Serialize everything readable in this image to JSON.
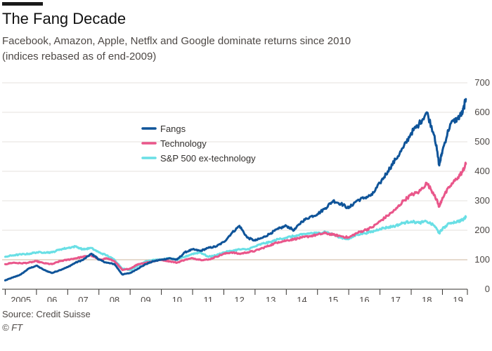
{
  "header": {
    "title": "The Fang Decade",
    "subtitle_line1": "Facebook, Amazon, Apple, Netflx and Google dominate returns since 2010",
    "subtitle_line2": "(indices rebased as of end-2009)"
  },
  "footer": {
    "source": "Source: Credit Suisse",
    "credit": "© FT"
  },
  "colors": {
    "fangs": "#0f5499",
    "technology": "#e9568a",
    "sp500": "#69dfe5",
    "gridline": "#e6e2de",
    "baseline": "#d8c4b0",
    "axis": "#33302e"
  },
  "chart_data": {
    "type": "line",
    "title": "The Fang Decade",
    "x_range": [
      2004.9,
      2019.8
    ],
    "ylim": [
      0,
      700
    ],
    "y_ticks": [
      0,
      100,
      200,
      300,
      400,
      500,
      600,
      700
    ],
    "x_ticks": [
      {
        "label": "2005",
        "value": 2005.5
      },
      {
        "label": "06",
        "value": 2006.5
      },
      {
        "label": "07",
        "value": 2007.5
      },
      {
        "label": "08",
        "value": 2008.5
      },
      {
        "label": "09",
        "value": 2009.5
      },
      {
        "label": "10",
        "value": 2010.5
      },
      {
        "label": "11",
        "value": 2011.5
      },
      {
        "label": "12",
        "value": 2012.5
      },
      {
        "label": "13",
        "value": 2013.5
      },
      {
        "label": "14",
        "value": 2014.5
      },
      {
        "label": "15",
        "value": 2015.5
      },
      {
        "label": "16",
        "value": 2016.5
      },
      {
        "label": "17",
        "value": 2017.5
      },
      {
        "label": "18",
        "value": 2018.5
      },
      {
        "label": "19",
        "value": 2019.5
      }
    ],
    "reference_line": 100,
    "grid": true,
    "legend_position": "top-left",
    "series": [
      {
        "name": "Fangs",
        "color": "#0f5499",
        "points": [
          [
            2005.0,
            30
          ],
          [
            2005.25,
            40
          ],
          [
            2005.5,
            50
          ],
          [
            2005.75,
            70
          ],
          [
            2006.0,
            80
          ],
          [
            2006.25,
            65
          ],
          [
            2006.5,
            55
          ],
          [
            2006.75,
            65
          ],
          [
            2007.0,
            75
          ],
          [
            2007.25,
            90
          ],
          [
            2007.5,
            100
          ],
          [
            2007.75,
            120
          ],
          [
            2007.9,
            110
          ],
          [
            2008.0,
            100
          ],
          [
            2008.25,
            90
          ],
          [
            2008.5,
            85
          ],
          [
            2008.75,
            50
          ],
          [
            2009.0,
            55
          ],
          [
            2009.25,
            70
          ],
          [
            2009.5,
            85
          ],
          [
            2009.75,
            95
          ],
          [
            2010.0,
            100
          ],
          [
            2010.25,
            105
          ],
          [
            2010.5,
            100
          ],
          [
            2010.75,
            125
          ],
          [
            2011.0,
            135
          ],
          [
            2011.25,
            130
          ],
          [
            2011.5,
            140
          ],
          [
            2011.75,
            145
          ],
          [
            2012.0,
            160
          ],
          [
            2012.25,
            190
          ],
          [
            2012.5,
            215
          ],
          [
            2012.75,
            175
          ],
          [
            2013.0,
            165
          ],
          [
            2013.25,
            175
          ],
          [
            2013.5,
            190
          ],
          [
            2013.75,
            205
          ],
          [
            2014.0,
            215
          ],
          [
            2014.25,
            200
          ],
          [
            2014.5,
            230
          ],
          [
            2014.75,
            245
          ],
          [
            2015.0,
            255
          ],
          [
            2015.25,
            275
          ],
          [
            2015.5,
            300
          ],
          [
            2015.75,
            290
          ],
          [
            2016.0,
            275
          ],
          [
            2016.25,
            300
          ],
          [
            2016.5,
            310
          ],
          [
            2016.75,
            320
          ],
          [
            2017.0,
            360
          ],
          [
            2017.25,
            400
          ],
          [
            2017.5,
            440
          ],
          [
            2017.75,
            480
          ],
          [
            2018.0,
            530
          ],
          [
            2018.25,
            560
          ],
          [
            2018.5,
            600
          ],
          [
            2018.75,
            520
          ],
          [
            2018.9,
            420
          ],
          [
            2019.0,
            470
          ],
          [
            2019.25,
            560
          ],
          [
            2019.5,
            580
          ],
          [
            2019.65,
            600
          ],
          [
            2019.75,
            645
          ]
        ]
      },
      {
        "name": "Technology",
        "color": "#e9568a",
        "points": [
          [
            2005.0,
            85
          ],
          [
            2005.25,
            90
          ],
          [
            2005.5,
            88
          ],
          [
            2005.75,
            90
          ],
          [
            2006.0,
            95
          ],
          [
            2006.25,
            88
          ],
          [
            2006.5,
            85
          ],
          [
            2006.75,
            95
          ],
          [
            2007.0,
            100
          ],
          [
            2007.25,
            105
          ],
          [
            2007.5,
            110
          ],
          [
            2007.75,
            115
          ],
          [
            2008.0,
            100
          ],
          [
            2008.25,
            105
          ],
          [
            2008.5,
            95
          ],
          [
            2008.75,
            65
          ],
          [
            2009.0,
            70
          ],
          [
            2009.25,
            85
          ],
          [
            2009.5,
            90
          ],
          [
            2009.75,
            95
          ],
          [
            2010.0,
            100
          ],
          [
            2010.25,
            95
          ],
          [
            2010.5,
            90
          ],
          [
            2010.75,
            100
          ],
          [
            2011.0,
            105
          ],
          [
            2011.25,
            100
          ],
          [
            2011.5,
            100
          ],
          [
            2011.75,
            110
          ],
          [
            2012.0,
            120
          ],
          [
            2012.25,
            125
          ],
          [
            2012.5,
            120
          ],
          [
            2012.75,
            125
          ],
          [
            2013.0,
            130
          ],
          [
            2013.25,
            140
          ],
          [
            2013.5,
            150
          ],
          [
            2013.75,
            160
          ],
          [
            2014.0,
            165
          ],
          [
            2014.25,
            170
          ],
          [
            2014.5,
            175
          ],
          [
            2014.75,
            180
          ],
          [
            2015.0,
            185
          ],
          [
            2015.25,
            190
          ],
          [
            2015.5,
            185
          ],
          [
            2015.75,
            180
          ],
          [
            2016.0,
            175
          ],
          [
            2016.25,
            190
          ],
          [
            2016.5,
            200
          ],
          [
            2016.75,
            210
          ],
          [
            2017.0,
            230
          ],
          [
            2017.25,
            250
          ],
          [
            2017.5,
            270
          ],
          [
            2017.75,
            300
          ],
          [
            2018.0,
            320
          ],
          [
            2018.25,
            330
          ],
          [
            2018.5,
            360
          ],
          [
            2018.75,
            320
          ],
          [
            2018.9,
            280
          ],
          [
            2019.0,
            310
          ],
          [
            2019.25,
            350
          ],
          [
            2019.5,
            380
          ],
          [
            2019.65,
            400
          ],
          [
            2019.75,
            425
          ]
        ]
      },
      {
        "name": "S&P 500 ex-technology",
        "color": "#69dfe5",
        "points": [
          [
            2005.0,
            110
          ],
          [
            2005.25,
            115
          ],
          [
            2005.5,
            118
          ],
          [
            2005.75,
            120
          ],
          [
            2006.0,
            125
          ],
          [
            2006.25,
            125
          ],
          [
            2006.5,
            125
          ],
          [
            2006.75,
            135
          ],
          [
            2007.0,
            140
          ],
          [
            2007.25,
            145
          ],
          [
            2007.5,
            135
          ],
          [
            2007.75,
            140
          ],
          [
            2008.0,
            125
          ],
          [
            2008.25,
            115
          ],
          [
            2008.5,
            100
          ],
          [
            2008.75,
            70
          ],
          [
            2009.0,
            65
          ],
          [
            2009.25,
            80
          ],
          [
            2009.5,
            95
          ],
          [
            2009.75,
            100
          ],
          [
            2010.0,
            100
          ],
          [
            2010.25,
            105
          ],
          [
            2010.5,
            100
          ],
          [
            2010.75,
            110
          ],
          [
            2011.0,
            120
          ],
          [
            2011.25,
            125
          ],
          [
            2011.5,
            110
          ],
          [
            2011.75,
            115
          ],
          [
            2012.0,
            125
          ],
          [
            2012.25,
            130
          ],
          [
            2012.5,
            135
          ],
          [
            2012.75,
            135
          ],
          [
            2013.0,
            145
          ],
          [
            2013.25,
            155
          ],
          [
            2013.5,
            160
          ],
          [
            2013.75,
            170
          ],
          [
            2014.0,
            175
          ],
          [
            2014.25,
            180
          ],
          [
            2014.5,
            185
          ],
          [
            2014.75,
            190
          ],
          [
            2015.0,
            190
          ],
          [
            2015.25,
            195
          ],
          [
            2015.5,
            185
          ],
          [
            2015.75,
            175
          ],
          [
            2016.0,
            170
          ],
          [
            2016.25,
            185
          ],
          [
            2016.5,
            190
          ],
          [
            2016.75,
            195
          ],
          [
            2017.0,
            205
          ],
          [
            2017.25,
            210
          ],
          [
            2017.5,
            215
          ],
          [
            2017.75,
            225
          ],
          [
            2018.0,
            230
          ],
          [
            2018.25,
            225
          ],
          [
            2018.5,
            230
          ],
          [
            2018.75,
            215
          ],
          [
            2018.9,
            190
          ],
          [
            2019.0,
            205
          ],
          [
            2019.25,
            225
          ],
          [
            2019.5,
            230
          ],
          [
            2019.65,
            235
          ],
          [
            2019.75,
            245
          ]
        ]
      }
    ]
  }
}
